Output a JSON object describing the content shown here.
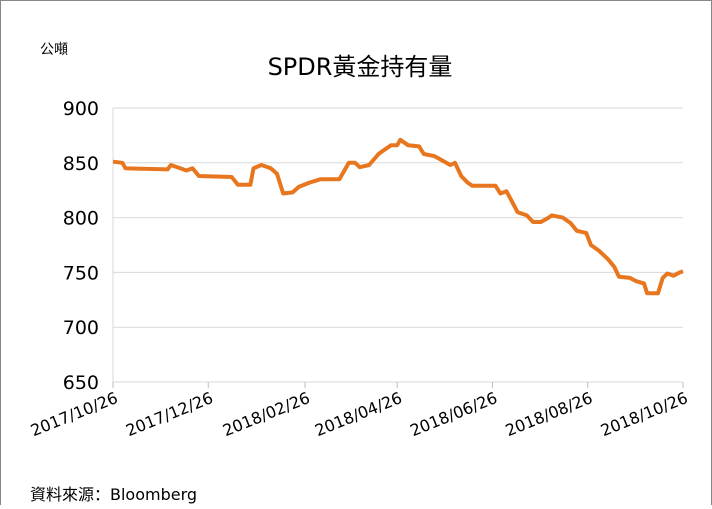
{
  "chart_data": {
    "type": "line",
    "title": "SPDR黃金持有量",
    "y_label": "公噸",
    "source": "資料來源：Bloomberg",
    "x": [
      "2017/10/26",
      "2017/11/01",
      "2017/11/03",
      "2017/11/30",
      "2017/12/02",
      "2017/12/08",
      "2017/12/12",
      "2017/12/16",
      "2017/12/20",
      "2018/01/10",
      "2018/01/14",
      "2018/01/22",
      "2018/01/24",
      "2018/01/29",
      "2018/02/04",
      "2018/02/08",
      "2018/02/12",
      "2018/02/18",
      "2018/02/22",
      "2018/03/01",
      "2018/03/08",
      "2018/03/20",
      "2018/03/26",
      "2018/03/30",
      "2018/04/02",
      "2018/04/08",
      "2018/04/14",
      "2018/04/18",
      "2018/04/22",
      "2018/04/26",
      "2018/04/28",
      "2018/05/03",
      "2018/05/10",
      "2018/05/13",
      "2018/05/20",
      "2018/05/25",
      "2018/05/30",
      "2018/06/02",
      "2018/06/06",
      "2018/06/10",
      "2018/06/13",
      "2018/06/28",
      "2018/07/01",
      "2018/07/05",
      "2018/07/08",
      "2018/07/12",
      "2018/07/18",
      "2018/07/22",
      "2018/07/27",
      "2018/08/01",
      "2018/08/03",
      "2018/08/10",
      "2018/08/15",
      "2018/08/19",
      "2018/08/25",
      "2018/08/28",
      "2018/09/02",
      "2018/09/08",
      "2018/09/12",
      "2018/09/15",
      "2018/09/22",
      "2018/09/26",
      "2018/10/01",
      "2018/10/03",
      "2018/10/10",
      "2018/10/13",
      "2018/10/16",
      "2018/10/20",
      "2018/10/24",
      "2018/10/26"
    ],
    "series": [
      {
        "name": "SPDR",
        "color": "#e8761e",
        "values": [
          851,
          850,
          845,
          844,
          848,
          845,
          843,
          845,
          838,
          837,
          830,
          830,
          845,
          848,
          845,
          840,
          822,
          823,
          828,
          832,
          835,
          835,
          850,
          850,
          846,
          848,
          858,
          862,
          866,
          866,
          871,
          866,
          865,
          858,
          856,
          852,
          848,
          850,
          838,
          832,
          829,
          829,
          822,
          824,
          816,
          805,
          802,
          796,
          796,
          800,
          802,
          800,
          795,
          788,
          786,
          775,
          770,
          762,
          755,
          746,
          745,
          742,
          740,
          731,
          731,
          745,
          749,
          747,
          750,
          751
        ]
      }
    ],
    "xlim": [
      "2017/10/26",
      "2018/10/26"
    ],
    "xticks": [
      "2017/10/26",
      "2017/12/26",
      "2018/02/26",
      "2018/04/26",
      "2018/06/26",
      "2018/08/26",
      "2018/10/26"
    ],
    "ylim": [
      650,
      900
    ],
    "yticks": [
      650,
      700,
      750,
      800,
      850,
      900
    ],
    "grid": true
  }
}
